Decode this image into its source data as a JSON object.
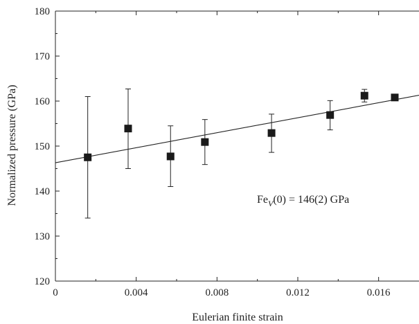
{
  "chart_data": {
    "type": "scatter",
    "xlabel": "Eulerian finite strain",
    "ylabel": "Normalized pressure (GPa)",
    "xlim": [
      0,
      0.018
    ],
    "ylim": [
      120,
      180
    ],
    "x_ticks": [
      0,
      0.004,
      0.008,
      0.012,
      0.016
    ],
    "x_tick_labels": [
      "0",
      "0.004",
      "0.008",
      "0.012",
      "0.016"
    ],
    "y_ticks": [
      120,
      130,
      140,
      150,
      160,
      170,
      180
    ],
    "y_tick_labels": [
      "120",
      "130",
      "140",
      "150",
      "160",
      "170",
      "180"
    ],
    "grid": false,
    "series": [
      {
        "marker": "square",
        "color": "#1a1a1a",
        "points": [
          {
            "x": 0.0016,
            "y": 147.5,
            "err_low": 134.0,
            "err_high": 161.0
          },
          {
            "x": 0.0036,
            "y": 153.9,
            "err_low": 145.0,
            "err_high": 162.7
          },
          {
            "x": 0.0057,
            "y": 147.7,
            "err_low": 141.0,
            "err_high": 154.5
          },
          {
            "x": 0.0074,
            "y": 150.9,
            "err_low": 145.9,
            "err_high": 155.9
          },
          {
            "x": 0.0107,
            "y": 152.9,
            "err_low": 148.6,
            "err_high": 157.1
          },
          {
            "x": 0.0136,
            "y": 156.9,
            "err_low": 153.6,
            "err_high": 160.1
          },
          {
            "x": 0.0153,
            "y": 161.2,
            "err_low": 159.8,
            "err_high": 162.6
          },
          {
            "x": 0.0168,
            "y": 160.8,
            "err_low": 160.1,
            "err_high": 161.4
          }
        ]
      }
    ],
    "fit_line": {
      "x": [
        0,
        0.018
      ],
      "y": [
        146.3,
        161.3
      ]
    },
    "annotation": {
      "prefix": "Fe",
      "subscript": "V",
      "suffix": "(0) = 146(2) GPa"
    }
  }
}
